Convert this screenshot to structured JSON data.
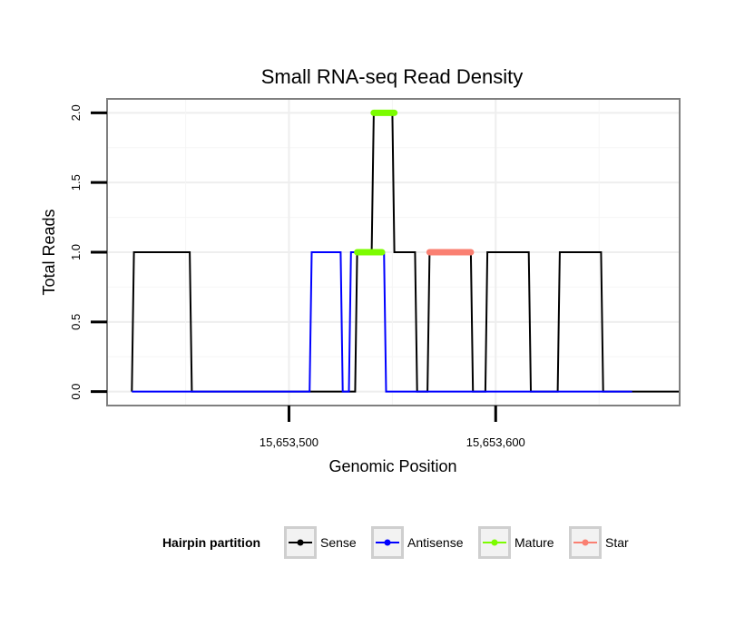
{
  "chart_data": {
    "type": "line",
    "title": "Small RNA-seq Read Density",
    "xlabel": "Genomic Position",
    "ylabel": "Total Reads",
    "xlim": [
      15653412,
      15653689
    ],
    "ylim": [
      -0.1,
      2.1
    ],
    "x_ticks": [
      {
        "value": 15653500,
        "label": "15,653,500"
      },
      {
        "value": 15653600,
        "label": "15,653,600"
      }
    ],
    "y_ticks": [
      {
        "value": 0.0,
        "label": "0.0"
      },
      {
        "value": 0.5,
        "label": "0.5"
      },
      {
        "value": 1.0,
        "label": "1.0"
      },
      {
        "value": 1.5,
        "label": "1.5"
      },
      {
        "value": 2.0,
        "label": "2.0"
      }
    ],
    "grid": true,
    "legend": {
      "title": "Hairpin partition",
      "position": "bottom",
      "entries": [
        {
          "name": "Sense",
          "color": "#000000"
        },
        {
          "name": "Antisense",
          "color": "#0000ff"
        },
        {
          "name": "Mature",
          "color": "#7cfc00"
        },
        {
          "name": "Star",
          "color": "#fa8072"
        }
      ]
    },
    "series": [
      {
        "name": "Sense",
        "color": "#000000",
        "x": [
          15653424,
          15653425,
          15653452,
          15653453,
          15653532,
          15653533,
          15653540,
          15653541,
          15653550,
          15653551,
          15653561,
          15653562,
          15653567,
          15653568,
          15653588,
          15653589,
          15653595,
          15653596,
          15653616,
          15653617,
          15653630,
          15653631,
          15653651,
          15653652,
          15653689
        ],
        "y": [
          0,
          1,
          1,
          0,
          0,
          1,
          1,
          2,
          2,
          1,
          1,
          0,
          0,
          1,
          1,
          0,
          0,
          1,
          1,
          0,
          0,
          1,
          1,
          0,
          0
        ]
      },
      {
        "name": "Antisense",
        "color": "#0000ff",
        "x": [
          15653424,
          15653510,
          15653511,
          15653525,
          15653526,
          15653529,
          15653530,
          15653546,
          15653547,
          15653666
        ],
        "y": [
          0,
          0,
          1,
          1,
          0,
          0,
          1,
          1,
          0,
          0
        ]
      },
      {
        "name": "Mature",
        "color": "#7cfc00",
        "segments": [
          {
            "x_start": 15653533,
            "x_end": 15653545,
            "y": 1
          },
          {
            "x_start": 15653541,
            "x_end": 15653551,
            "y": 2
          }
        ]
      },
      {
        "name": "Star",
        "color": "#fa8072",
        "segments": [
          {
            "x_start": 15653568,
            "x_end": 15653588,
            "y": 1
          }
        ]
      }
    ]
  }
}
